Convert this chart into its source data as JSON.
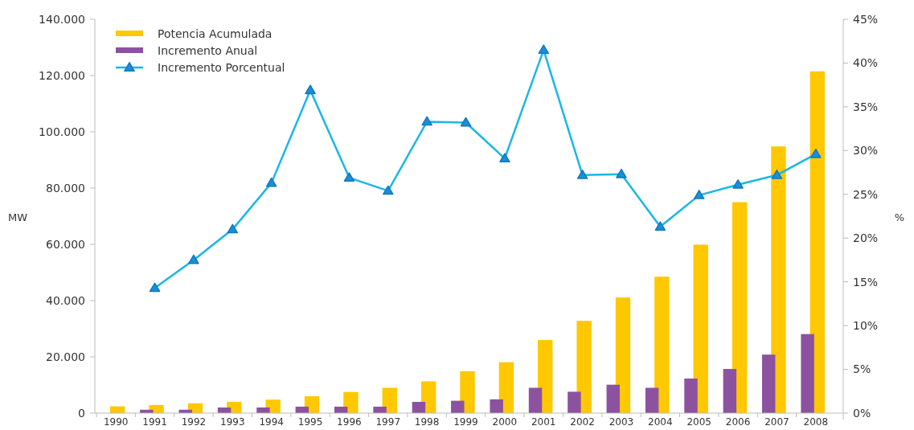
{
  "chart_data": {
    "type": "bar",
    "ylabel": "MW",
    "y2label": "%",
    "categories": [
      "1990",
      "1991",
      "1992",
      "1993",
      "1994",
      "1995",
      "1996",
      "1997",
      "1998",
      "1999",
      "2000",
      "2001",
      "2002",
      "2003",
      "2004",
      "2005",
      "2006",
      "2007",
      "2008"
    ],
    "series": [
      {
        "name": "Potencia Acumulada",
        "color": "#ffc800",
        "values": [
          2400,
          2900,
          3500,
          4000,
          4800,
          6000,
          7500,
          9000,
          11300,
          14900,
          18100,
          26000,
          32800,
          41100,
          48500,
          59900,
          75000,
          94800,
          121500
        ]
      },
      {
        "name": "Incremento Anual",
        "color": "#8c52a0",
        "values": [
          null,
          1200,
          1200,
          2000,
          2000,
          2300,
          2300,
          2300,
          4000,
          4400,
          4900,
          9000,
          7600,
          10100,
          9000,
          12300,
          15700,
          20800,
          28100
        ]
      },
      {
        "name": "Incremento Porcentual",
        "type": "line",
        "axis": "y2",
        "color": "#1ab6e8",
        "values": [
          null,
          14.3,
          17.5,
          21.0,
          26.3,
          36.9,
          26.9,
          25.4,
          33.3,
          33.2,
          29.1,
          41.5,
          27.2,
          27.3,
          21.3,
          24.9,
          26.1,
          27.2,
          29.6
        ]
      }
    ],
    "ylim": [
      0,
      140000
    ],
    "yticks": [
      {
        "value": 0,
        "label": "0"
      },
      {
        "value": 20000,
        "label": "20.000"
      },
      {
        "value": 40000,
        "label": "40.000"
      },
      {
        "value": 60000,
        "label": "60.000"
      },
      {
        "value": 80000,
        "label": "80.000"
      },
      {
        "value": 100000,
        "label": "100.000"
      },
      {
        "value": 120000,
        "label": "120.000"
      },
      {
        "value": 140000,
        "label": "140.000"
      }
    ],
    "y2lim": [
      0,
      45
    ],
    "y2ticks": [
      {
        "value": 0,
        "label": "0%"
      },
      {
        "value": 5,
        "label": "5%"
      },
      {
        "value": 10,
        "label": "10%"
      },
      {
        "value": 15,
        "label": "15%"
      },
      {
        "value": 20,
        "label": "20%"
      },
      {
        "value": 25,
        "label": "25%"
      },
      {
        "value": 30,
        "label": "30%"
      },
      {
        "value": 35,
        "label": "35%"
      },
      {
        "value": 40,
        "label": "40%"
      },
      {
        "value": 45,
        "label": "45%"
      }
    ],
    "legend": "top left",
    "marker": "triangle",
    "grid": false
  }
}
